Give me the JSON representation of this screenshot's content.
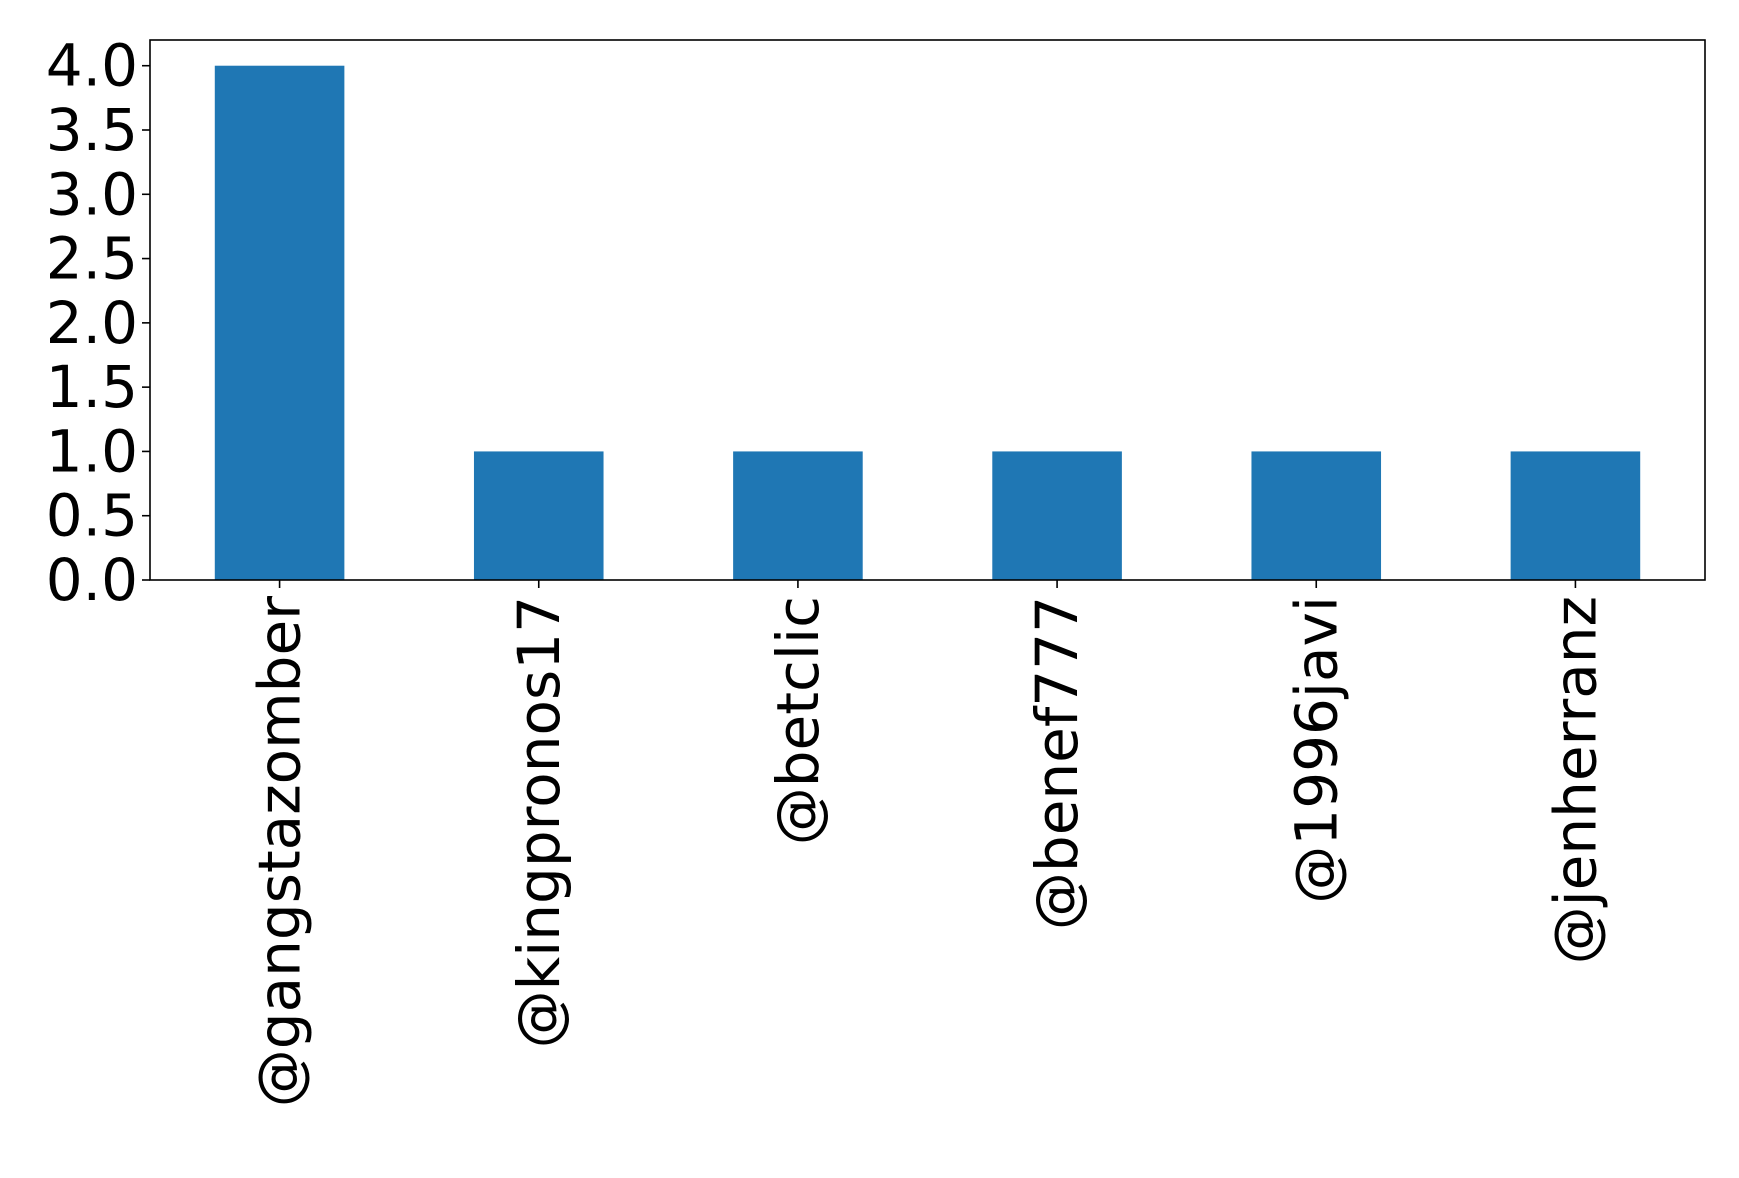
{
  "chart_data": {
    "type": "bar",
    "title": "",
    "xlabel": "",
    "ylabel": "",
    "categories": [
      "@gangstazomber",
      "@kingpronos17",
      "@betclic",
      "@benef777",
      "@1996javi",
      "@jenherranz"
    ],
    "values": [
      4,
      1,
      1,
      1,
      1,
      1
    ],
    "ylim": [
      0,
      4.2
    ],
    "yticks": [
      "0.0",
      "0.5",
      "1.0",
      "1.5",
      "2.0",
      "2.5",
      "3.0",
      "3.5",
      "4.0"
    ],
    "ytick_values": [
      0,
      0.5,
      1.0,
      1.5,
      2.0,
      2.5,
      3.0,
      3.5,
      4.0
    ],
    "grid": false,
    "legend": "none",
    "colors": {
      "bar": "#1f77b4",
      "axis": "#000000",
      "background": "#ffffff"
    }
  }
}
